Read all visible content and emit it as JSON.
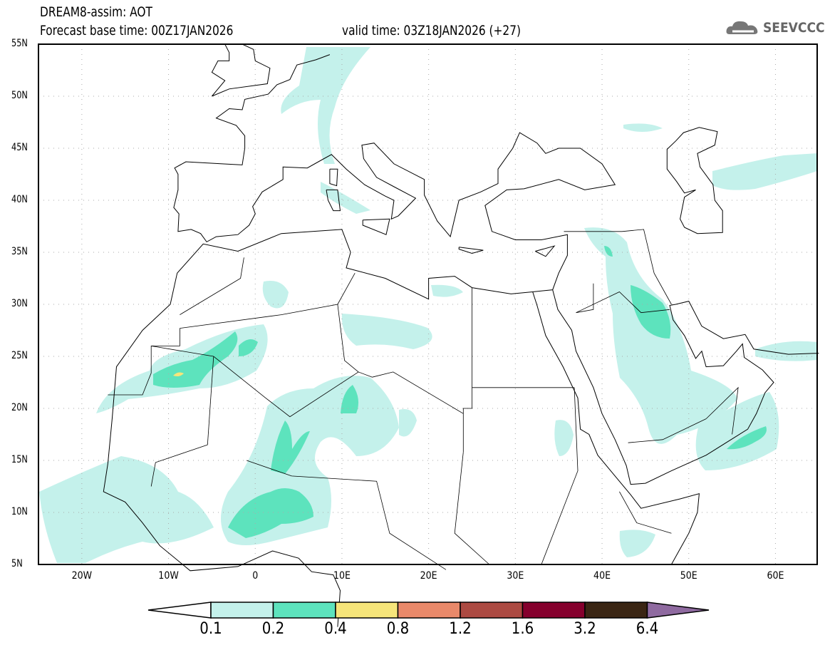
{
  "title": "DREAM8-assim: AOT",
  "base_time": "Forecast base time: 00Z17JAN2026",
  "valid_time": "valid time: 03Z18JAN2026 (+27)",
  "logo": "SEEVCCC",
  "lat_labels": [
    "55N",
    "50N",
    "45N",
    "40N",
    "35N",
    "30N",
    "25N",
    "20N",
    "15N",
    "10N",
    "5N"
  ],
  "lon_labels": [
    "20W",
    "10W",
    "0",
    "10E",
    "20E",
    "30E",
    "40E",
    "50E",
    "60E"
  ],
  "colorbar": {
    "labels": [
      "0.1",
      "0.2",
      "0.4",
      "0.8",
      "1.2",
      "1.6",
      "3.2",
      "6.4"
    ],
    "colors": [
      "#ffffff",
      "#c4f1eb",
      "#5de3bd",
      "#f6e57a",
      "#e9896a",
      "#ac4a42",
      "#85002d",
      "#3a2513",
      "#8f6aa0"
    ]
  }
}
